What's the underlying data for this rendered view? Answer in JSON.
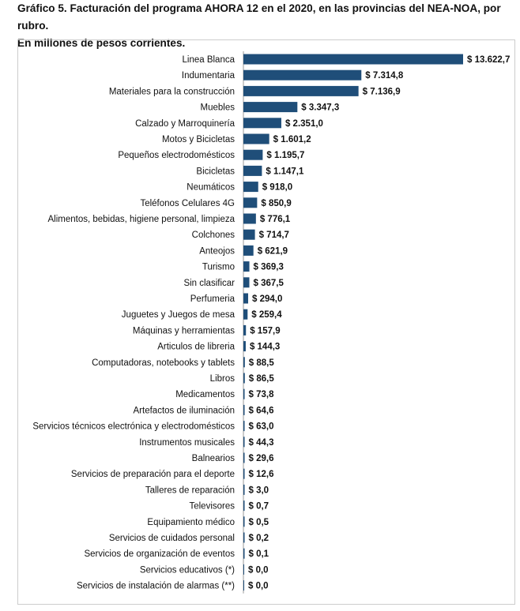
{
  "title_line1": "Gráfico 5. Facturación del programa AHORA 12 en el 2020, en las provincias del NEA-NOA, por rubro.",
  "title_line2": "En millones de pesos corrientes.",
  "bar_color": "#1f4e79",
  "chart_data": {
    "type": "bar",
    "orientation": "horizontal",
    "title": "Gráfico 5. Facturación del programa AHORA 12 en el 2020, en las provincias del NEA-NOA, por rubro. En millones de pesos corrientes.",
    "xlabel": "",
    "ylabel": "",
    "xlim": [
      0,
      13622.7
    ],
    "grid": false,
    "categories": [
      "Linea Blanca",
      "Indumentaria",
      "Materiales para la construcción",
      "Muebles",
      "Calzado y Marroquinería",
      "Motos y Bicicletas",
      "Pequeños electrodomésticos",
      "Bicicletas",
      "Neumáticos",
      "Teléfonos Celulares 4G",
      "Alimentos, bebidas, higiene personal, limpieza",
      "Colchones",
      "Anteojos",
      "Turismo",
      "Sin clasificar",
      "Perfumeria",
      "Juguetes y Juegos de mesa",
      "Máquinas y herramientas",
      "Articulos de libreria",
      "Computadoras, notebooks y tablets",
      "Libros",
      "Medicamentos",
      "Artefactos de iluminación",
      "Servicios técnicos electrónica y electrodomésticos",
      "Instrumentos musicales",
      "Balnearios",
      "Servicios de preparación para el deporte",
      "Talleres de reparación",
      "Televisores",
      "Equipamiento médico",
      "Servicios de cuidados personal",
      "Servicios de organización de eventos",
      "Servicios educativos (*)",
      "Servicios de instalación de alarmas (**)"
    ],
    "values": [
      13622.7,
      7314.8,
      7136.9,
      3347.3,
      2351.0,
      1601.2,
      1195.7,
      1147.1,
      918.0,
      850.9,
      776.1,
      714.7,
      621.9,
      369.3,
      367.5,
      294.0,
      259.4,
      157.9,
      144.3,
      88.5,
      86.5,
      73.8,
      64.6,
      63.0,
      44.3,
      29.6,
      12.6,
      3.0,
      0.7,
      0.5,
      0.2,
      0.1,
      0.0,
      0.0
    ],
    "value_labels": [
      "$ 13.622,7",
      "$ 7.314,8",
      "$ 7.136,9",
      "$ 3.347,3",
      "$ 2.351,0",
      "$ 1.601,2",
      "$ 1.195,7",
      "$ 1.147,1",
      "$ 918,0",
      "$ 850,9",
      "$ 776,1",
      "$ 714,7",
      "$ 621,9",
      "$ 369,3",
      "$ 367,5",
      "$ 294,0",
      "$ 259,4",
      "$ 157,9",
      "$ 144,3",
      "$ 88,5",
      "$ 86,5",
      "$ 73,8",
      "$ 64,6",
      "$ 63,0",
      "$ 44,3",
      "$ 29,6",
      "$ 12,6",
      "$ 3,0",
      "$ 0,7",
      "$ 0,5",
      "$ 0,2",
      "$ 0,1",
      "$ 0,0",
      "$ 0,0"
    ]
  }
}
